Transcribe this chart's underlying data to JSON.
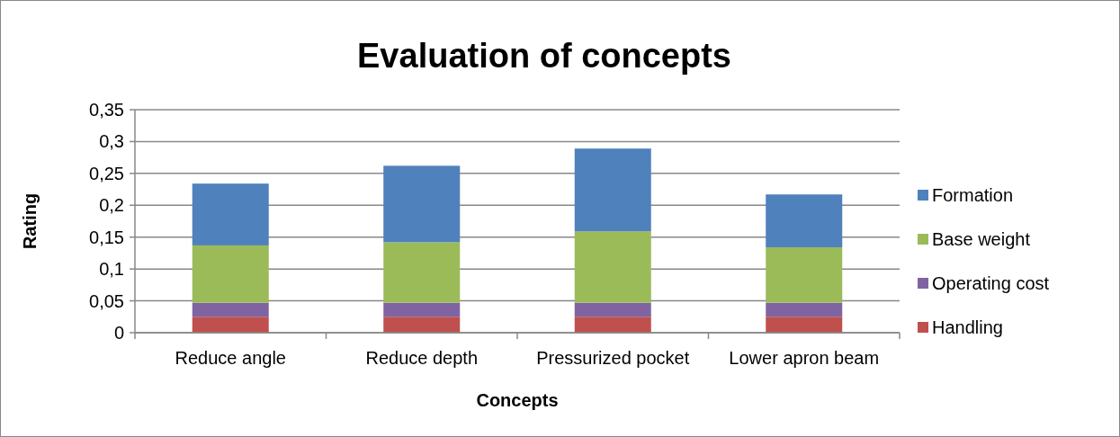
{
  "chart_data": {
    "type": "bar",
    "title": "Evaluation of concepts",
    "xlabel": "Concepts",
    "ylabel": "Rating",
    "categories": [
      "Reduce angle",
      "Reduce depth",
      "Pressurized pocket",
      "Lower apron beam"
    ],
    "stacked": true,
    "series": [
      {
        "name": "Handling",
        "color": "#c0504d",
        "values": [
          0.025,
          0.025,
          0.025,
          0.025
        ]
      },
      {
        "name": "Operating cost",
        "color": "#8064a2",
        "values": [
          0.022,
          0.022,
          0.022,
          0.022
        ]
      },
      {
        "name": "Base weight",
        "color": "#9bbb59",
        "values": [
          0.09,
          0.095,
          0.112,
          0.087
        ]
      },
      {
        "name": "Formation",
        "color": "#4f81bd",
        "values": [
          0.097,
          0.12,
          0.13,
          0.083
        ]
      }
    ],
    "ylim": [
      0,
      0.35
    ],
    "yticks": [
      {
        "value": 0,
        "label": "0"
      },
      {
        "value": 0.05,
        "label": "0,05"
      },
      {
        "value": 0.1,
        "label": "0,1"
      },
      {
        "value": 0.15,
        "label": "0,15"
      },
      {
        "value": 0.2,
        "label": "0,2"
      },
      {
        "value": 0.25,
        "label": "0,25"
      },
      {
        "value": 0.3,
        "label": "0,3"
      },
      {
        "value": 0.35,
        "label": "0,35"
      }
    ],
    "grid": "y",
    "legend": "right"
  }
}
